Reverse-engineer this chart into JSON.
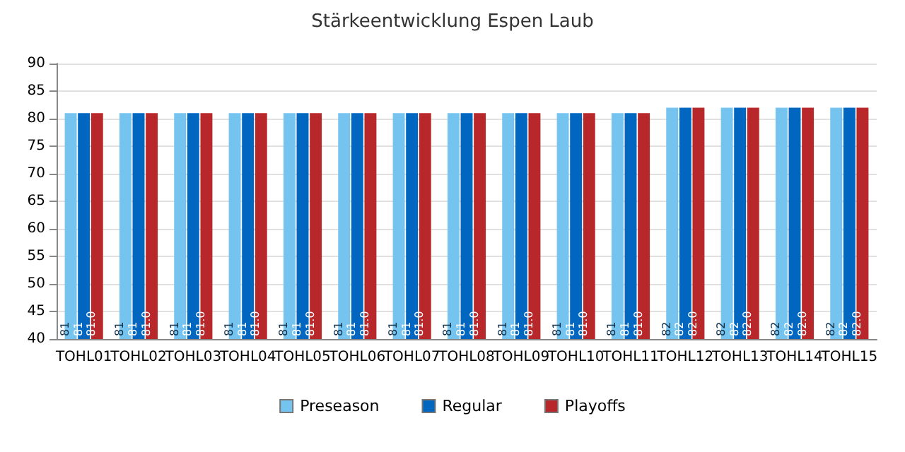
{
  "chart_data": {
    "type": "bar",
    "title": "Stärkeentwicklung Espen Laub",
    "categories": [
      "TOHL01",
      "TOHL02",
      "TOHL03",
      "TOHL04",
      "TOHL05",
      "TOHL06",
      "TOHL07",
      "TOHL08",
      "TOHL09",
      "TOHL10",
      "TOHL11",
      "TOHL12",
      "TOHL13",
      "TOHL14",
      "TOHL15"
    ],
    "series": [
      {
        "name": "Preseason",
        "color": "#75c3ef",
        "values": [
          81,
          81,
          81,
          81,
          81,
          81,
          81,
          81,
          81,
          81,
          81,
          82,
          82,
          82,
          82
        ],
        "value_labels": [
          "81",
          "81",
          "81",
          "81",
          "81",
          "81",
          "81",
          "81",
          "81",
          "81",
          "81",
          "82",
          "82",
          "82",
          "82"
        ]
      },
      {
        "name": "Regular",
        "color": "#0066c0",
        "values": [
          81,
          81,
          81,
          81,
          81,
          81,
          81,
          81,
          81,
          81,
          81,
          82,
          82,
          82,
          82
        ],
        "value_labels": [
          "81",
          "81",
          "81",
          "81",
          "81",
          "81",
          "81",
          "81",
          "81",
          "81",
          "81",
          "82",
          "82",
          "82",
          "82"
        ]
      },
      {
        "name": "Playoffs",
        "color": "#b8272a",
        "values": [
          81,
          81,
          81,
          81,
          81,
          81,
          81,
          81,
          81,
          81,
          81,
          82,
          82,
          82,
          82
        ],
        "value_labels": [
          "81.0",
          "81.0",
          "81.0",
          "81.0",
          "81.0",
          "81.0",
          "81.0",
          "81.0",
          "81.0",
          "81.0",
          "81.0",
          "82.0",
          "82.0",
          "82.0",
          "82.0"
        ]
      }
    ],
    "ylim": [
      40,
      90
    ],
    "yticks": [
      40,
      45,
      50,
      55,
      60,
      65,
      70,
      75,
      80,
      85,
      90
    ],
    "grid": "y",
    "legend": "bottom"
  }
}
